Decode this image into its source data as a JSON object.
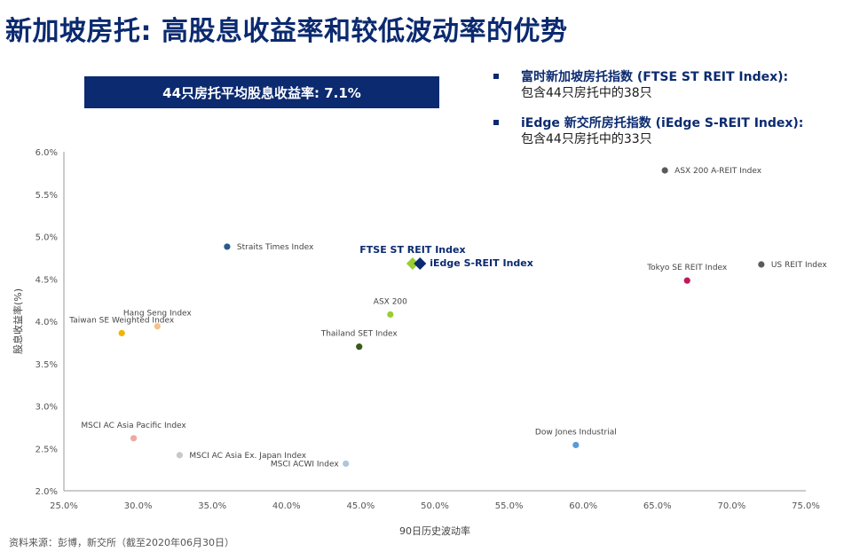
{
  "title": "新加坡房托: 高股息收益率和较低波动率的优势",
  "banner": "44只房托平均股息收益率: 7.1%",
  "indices": [
    {
      "name": "富时新加坡房托指数 (FTSE ST REIT Index):",
      "desc": "包含44只房托中的38只"
    },
    {
      "name": "iEdge 新交所房托指数 (iEdge S-REIT Index):",
      "desc": "包含44只房托中的33只"
    }
  ],
  "source": "资料来源：彭博，新交所（截至2020年06月30日）",
  "chart_data": {
    "type": "scatter",
    "xlabel": "90日历史波动率",
    "ylabel": "股息收益率(%)",
    "xlim": [
      25,
      75
    ],
    "ylim": [
      2.0,
      6.0
    ],
    "xticks": [
      "25.0%",
      "30.0%",
      "35.0%",
      "40.0%",
      "45.0%",
      "50.0%",
      "55.0%",
      "60.0%",
      "65.0%",
      "70.0%",
      "75.0%"
    ],
    "yticks": [
      "2.0%",
      "2.5%",
      "3.0%",
      "3.5%",
      "4.0%",
      "4.5%",
      "5.0%",
      "5.5%",
      "6.0%"
    ],
    "points": [
      {
        "label": "ASX 200 A-REIT Index",
        "x": 65.5,
        "y": 5.78,
        "color": "#5a5a5a",
        "shape": "circle",
        "pos": "right"
      },
      {
        "label": "Straits Times Index",
        "x": 36.0,
        "y": 4.88,
        "color": "#2a5a8a",
        "shape": "circle",
        "pos": "right"
      },
      {
        "label": "FTSE ST REIT Index",
        "x": 48.5,
        "y": 4.68,
        "color": "#9acd32",
        "shape": "diamond",
        "pos": "top",
        "highlight": true
      },
      {
        "label": "iEdge S-REIT Index",
        "x": 49.0,
        "y": 4.68,
        "color": "#0b2a6f",
        "shape": "diamond",
        "pos": "right",
        "highlight": true
      },
      {
        "label": "US REIT Index",
        "x": 72.0,
        "y": 4.67,
        "color": "#5a5a5a",
        "shape": "circle",
        "pos": "right"
      },
      {
        "label": "Tokyo SE REIT Index",
        "x": 67.0,
        "y": 4.48,
        "color": "#c2185b",
        "shape": "circle",
        "pos": "top"
      },
      {
        "label": "ASX 200",
        "x": 47.0,
        "y": 4.08,
        "color": "#9acd32",
        "shape": "circle",
        "pos": "top"
      },
      {
        "label": "Hang Seng Index",
        "x": 31.3,
        "y": 3.94,
        "color": "#f5c28c",
        "shape": "circle",
        "pos": "top"
      },
      {
        "label": "Taiwan SE Weighted Index",
        "x": 28.9,
        "y": 3.86,
        "color": "#f0b400",
        "shape": "circle",
        "pos": "top"
      },
      {
        "label": "Thailand SET Index",
        "x": 44.9,
        "y": 3.7,
        "color": "#3a5a1a",
        "shape": "circle",
        "pos": "top"
      },
      {
        "label": "MSCI AC Asia Pacific Index",
        "x": 29.7,
        "y": 2.62,
        "color": "#f0a8a0",
        "shape": "circle",
        "pos": "top"
      },
      {
        "label": "MSCI AC Asia Ex. Japan Index",
        "x": 32.8,
        "y": 2.42,
        "color": "#c8c8c8",
        "shape": "circle",
        "pos": "right"
      },
      {
        "label": "MSCI ACWI Index",
        "x": 44.0,
        "y": 2.32,
        "color": "#b0c4de",
        "shape": "circle",
        "pos": "left"
      },
      {
        "label": "Dow Jones Industrial",
        "x": 59.5,
        "y": 2.54,
        "color": "#5b9bd5",
        "shape": "circle",
        "pos": "top"
      }
    ]
  }
}
